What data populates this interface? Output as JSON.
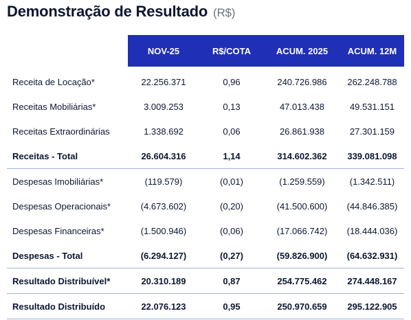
{
  "title": {
    "text": "Demonstração de Resultado",
    "unit": "(R$)"
  },
  "table": {
    "headers": [
      "",
      "NOV-25",
      "R$/COTA",
      "ACUM. 2025",
      "ACUM. 12M"
    ],
    "rows": [
      {
        "label": "Receita de Locação*",
        "values": [
          "22.256.371",
          "0,96",
          "240.726.986",
          "262.248.788"
        ],
        "bold": false,
        "sep": false
      },
      {
        "label": "Receitas Mobiliárias*",
        "values": [
          "3.009.253",
          "0,13",
          "47.013.438",
          "49.531.151"
        ],
        "bold": false,
        "sep": false
      },
      {
        "label": "Receitas Extraordinárias",
        "values": [
          "1.338.692",
          "0,06",
          "26.861.938",
          "27.301.159"
        ],
        "bold": false,
        "sep": false
      },
      {
        "label": "Receitas - Total",
        "values": [
          "26.604.316",
          "1,14",
          "314.602.362",
          "339.081.098"
        ],
        "bold": true,
        "sep": true
      },
      {
        "label": "Despesas Imobiliárias*",
        "values": [
          "(119.579)",
          "(0,01)",
          "(1.259.559)",
          "(1.342.511)"
        ],
        "bold": false,
        "sep": false
      },
      {
        "label": "Despesas Operacionais*",
        "values": [
          "(4.673.602)",
          "(0,20)",
          "(41.500.600)",
          "(44.846.385)"
        ],
        "bold": false,
        "sep": false
      },
      {
        "label": "Despesas Financeiras*",
        "values": [
          "(1.500.946)",
          "(0,06)",
          "(17.066.742)",
          "(18.444.036)"
        ],
        "bold": false,
        "sep": false
      },
      {
        "label": "Despesas - Total",
        "values": [
          "(6.294.127)",
          "(0,27)",
          "(59.826.900)",
          "(64.632.931)"
        ],
        "bold": true,
        "sep": true
      },
      {
        "label": "Resultado Distribuível*",
        "values": [
          "20.310.189",
          "0,87",
          "254.775.462",
          "274.448.167"
        ],
        "bold": true,
        "sep": true
      },
      {
        "label": "Resultado Distribuído",
        "values": [
          "22.076.123",
          "0,95",
          "250.970.659",
          "295.122.905"
        ],
        "bold": true,
        "sep": true
      }
    ]
  }
}
